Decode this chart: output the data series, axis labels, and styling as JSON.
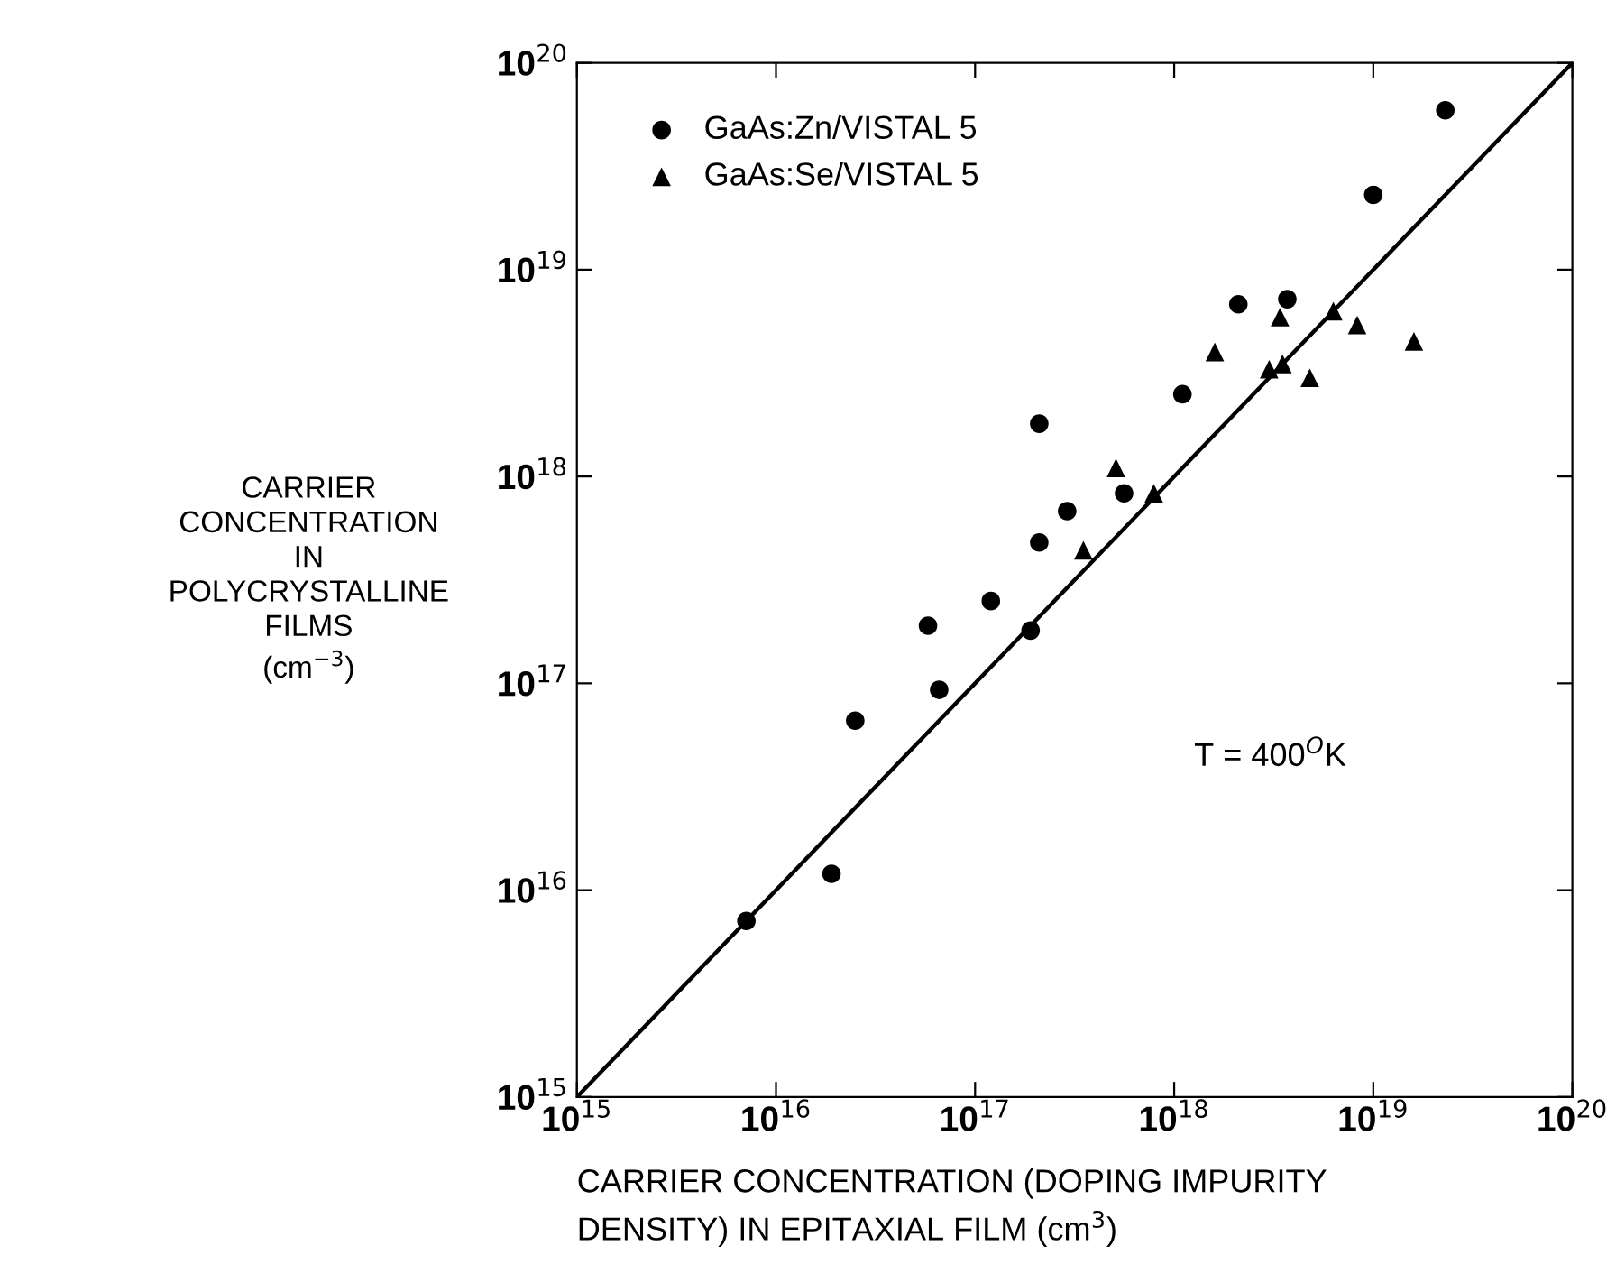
{
  "chart_data": {
    "type": "scatter",
    "xlabel": "CARRIER CONCENTRATION (DOPING IMPURITY\nDENSITY) IN EPITAXIAL FILM (cm$^{3}$)",
    "ylabel": "CARRIER\nCONCENTRATION\nIN\nPOLYCRYSTALLINE\nFILMS\n(cm$^{−3}$)",
    "annotations": [
      "T = 400$^{O}$K"
    ],
    "log": "xy",
    "grid": false,
    "legend": "top left",
    "xlim": [
      1000000000000000.0,
      1e+20
    ],
    "ylim": [
      1000000000000000.0,
      1e+20
    ],
    "xticks": [
      {
        "value": 1000000000000000.0,
        "label": "10$^{15}$"
      },
      {
        "value": 1e+16,
        "label": "10$^{16}$"
      },
      {
        "value": 1e+17,
        "label": "10$^{17}$"
      },
      {
        "value": 1e+18,
        "label": "10$^{18}$"
      },
      {
        "value": 1e+19,
        "label": "10$^{19}$"
      },
      {
        "value": 1e+20,
        "label": "10$^{20}$"
      }
    ],
    "yticks": [
      {
        "value": 1000000000000000.0,
        "label": "10$^{15}$"
      },
      {
        "value": 1e+16,
        "label": "10$^{16}$"
      },
      {
        "value": 1e+17,
        "label": "10$^{17}$"
      },
      {
        "value": 1e+18,
        "label": "10$^{18}$"
      },
      {
        "value": 1e+19,
        "label": "10$^{19}$"
      },
      {
        "value": 1e+20,
        "label": "10$^{20}$"
      }
    ],
    "series": [
      {
        "name": "GaAs:Zn/VISTAL 5",
        "color": "#000000",
        "marker": "circle",
        "x": [
          7100000000000000.0,
          1.9e+16,
          2.5e+16,
          5.8e+16,
          6.6e+16,
          1.2e+17,
          1.9e+17,
          2.1e+17,
          2.1e+17,
          2.9e+17,
          5.6e+17,
          1.1e+18,
          2.1e+18,
          3.7e+18,
          1e+19,
          2.3e+19
        ],
        "values": [
          7100000000000000.0,
          1.2e+16,
          6.6e+16,
          1.9e+17,
          9.3e+16,
          2.5e+17,
          1.8e+17,
          1.8e+18,
          4.8e+17,
          6.8e+17,
          8.3e+17,
          2.5e+18,
          6.8e+18,
          7.2e+18,
          2.3e+19,
          5.9e+19
        ]
      },
      {
        "name": "GaAs:Se/VISTAL 5",
        "color": "#000000",
        "marker": "triangle",
        "x": [
          3.5e+17,
          5.1e+17,
          7.9e+17,
          1.6e+18,
          3e+18,
          3.5e+18,
          3.4e+18,
          4.8e+18,
          6.3e+18,
          8.3e+18,
          1.6e+19
        ],
        "values": [
          4.4e+17,
          1.1e+18,
          8.3e+17,
          4e+18,
          3.3e+18,
          3.5e+18,
          5.9e+18,
          3e+18,
          6.3e+18,
          5.4e+18,
          4.5e+18
        ]
      },
      {
        "type": "line",
        "color": "#000000",
        "marker": "none",
        "line_style": "solid",
        "x": [
          1000000000000000.0,
          1e+20
        ],
        "values": [
          1000000000000000.0,
          1e+20
        ]
      }
    ]
  }
}
